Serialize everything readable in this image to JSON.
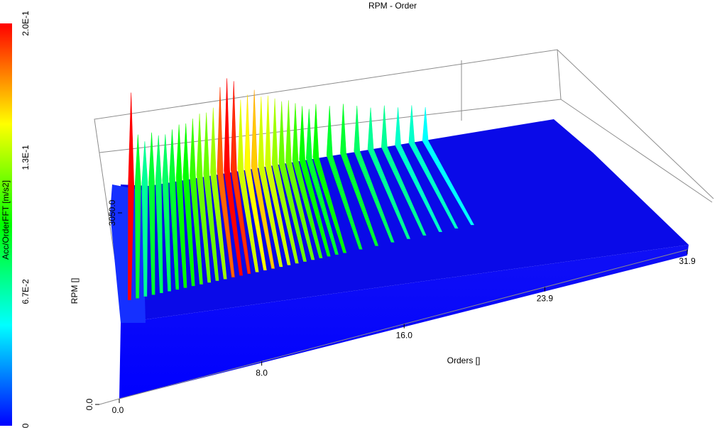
{
  "chart_data": {
    "type": "surface3d",
    "title": "RPM - Order",
    "xlabel": "Orders []",
    "ylabel": "RPM []",
    "colorbar_label": "Acc/OrderFFT [m/s2]",
    "x_ticks": [
      "0.0",
      "8.0",
      "16.0",
      "23.9",
      "31.9"
    ],
    "y_ticks": [
      "0.0",
      "3050.0"
    ],
    "colorbar_ticks": [
      "0",
      "6.7E-2",
      "1.3E-1",
      "2.0E-1"
    ],
    "xlim": [
      0,
      31.9
    ],
    "zlim": [
      0,
      0.2
    ],
    "colormap": [
      "#0000ff",
      "#00ffff",
      "#00ff00",
      "#ffff00",
      "#ff0000"
    ],
    "series": [
      {
        "orders": [
          0.5,
          1,
          1.5,
          2,
          2.5,
          3,
          3.5,
          4,
          4.5,
          5,
          5.5,
          6,
          6.5,
          7,
          7.5,
          8,
          8.5,
          9,
          9.5,
          10,
          10.5,
          11,
          11.5,
          12,
          12.5,
          13,
          13.5,
          14,
          15,
          16,
          17,
          18,
          19,
          20,
          21,
          22
        ],
        "peak_amplitudes": [
          0.2,
          0.09,
          0.07,
          0.09,
          0.08,
          0.08,
          0.09,
          0.1,
          0.1,
          0.11,
          0.12,
          0.12,
          0.13,
          0.18,
          0.2,
          0.19,
          0.14,
          0.15,
          0.16,
          0.14,
          0.14,
          0.13,
          0.12,
          0.12,
          0.11,
          0.1,
          0.09,
          0.1,
          0.09,
          0.09,
          0.08,
          0.07,
          0.07,
          0.06,
          0.06,
          0.05
        ]
      }
    ]
  }
}
